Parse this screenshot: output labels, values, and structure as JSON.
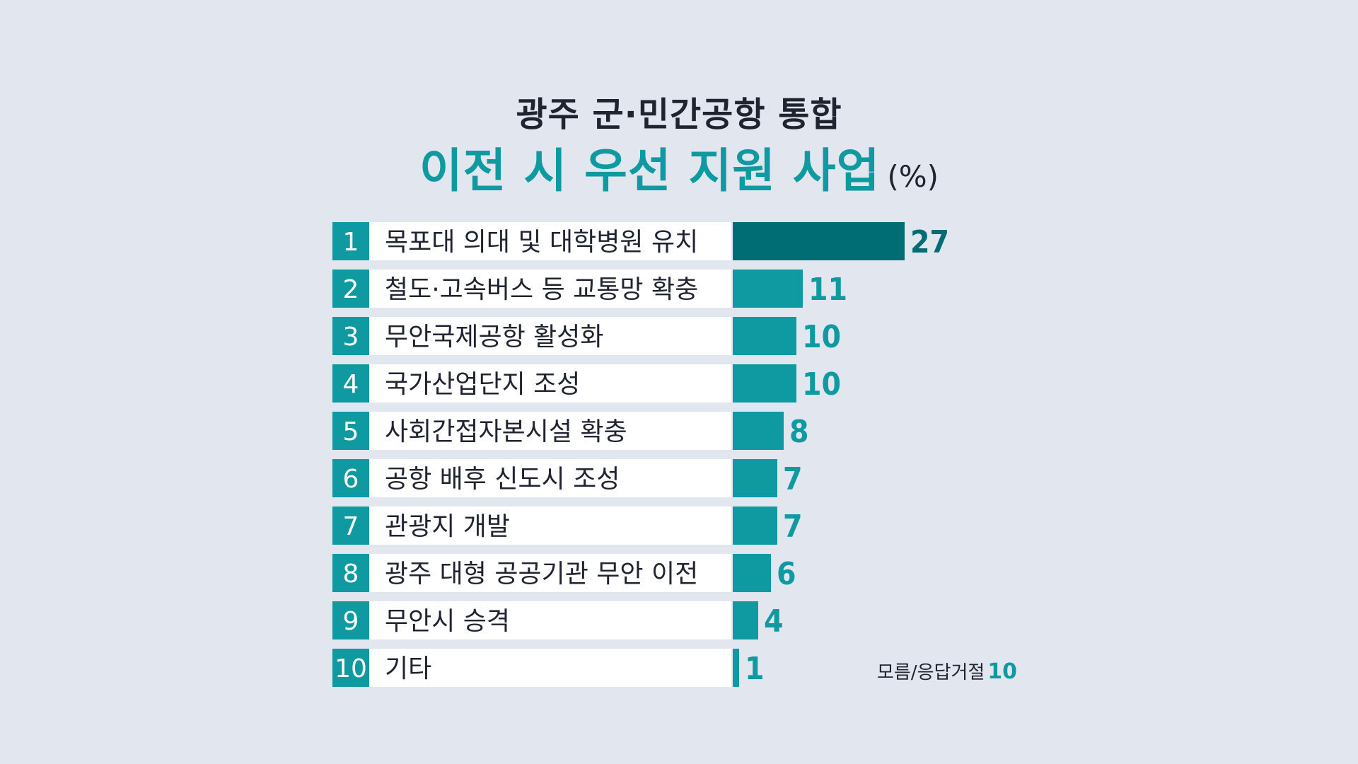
{
  "chart_data": {
    "type": "bar",
    "orientation": "horizontal",
    "title": "광주 군·민간공항 통합",
    "subtitle": "이전 시 우선 지원 사업",
    "unit": "(%)",
    "ranks": [
      "1",
      "2",
      "3",
      "4",
      "5",
      "6",
      "7",
      "8",
      "9",
      "10"
    ],
    "categories": [
      "목포대 의대 및 대학병원 유치",
      "철도·고속버스 등 교통망 확충",
      "무안국제공항 활성화",
      "국가산업단지 조성",
      "사회간접자본시설 확충",
      "공항 배후 신도시 조성",
      "관광지 개발",
      "광주 대형 공공기관 무안 이전",
      "무안시 승격",
      "기타"
    ],
    "values": [
      27,
      11,
      10,
      10,
      8,
      7,
      7,
      6,
      4,
      1
    ],
    "highlight_index": 0,
    "note_label": "모름/응답거절",
    "note_value": "10",
    "colors": {
      "bar": "#0e9aa0",
      "bar_highlight": "#006d75",
      "rank_box": "#0e9aa0",
      "label_box": "#ffffff",
      "background": "#e1e6ef",
      "text": "#1f2430"
    }
  }
}
